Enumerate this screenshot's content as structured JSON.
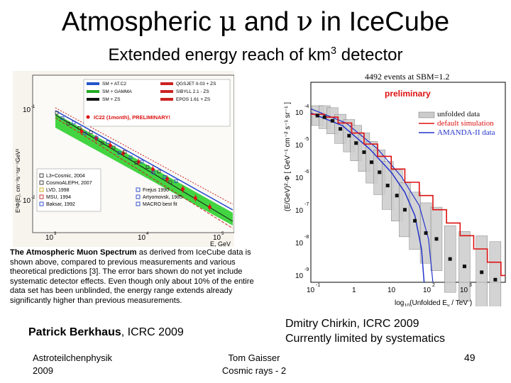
{
  "slide": {
    "title_pre": "Atmospheric ",
    "title_mu": "μ",
    "title_and": " and ",
    "title_nu": "ν",
    "title_post": " in IceCube",
    "subtitle_pre": "Extended energy reach of km",
    "subtitle_sup": "3",
    "subtitle_post": " detector",
    "caption_bold": "The Atmospheric Muon Spectrum",
    "caption_rest": " as derived from IceCube data is shown above, compared to previous measurements and various theoretical predictions [3]. The error bars shown do not yet include systematic detector effects. Even though only about 10% of the entire data set has been unblinded, the energy range extends already significantly higher than previous measurements.",
    "credit_left_bold": "Patrick Berkhaus",
    "credit_left_rest": ", ICRC 2009",
    "credit_right_line1": "Dmitry Chirkin, ICRC 2009",
    "credit_right_line2": "Currently limited by systematics",
    "footer_left_line1": "Astroteilchenphysik",
    "footer_left_line2": "2009",
    "footer_mid_line1": "Tom Gaisser",
    "footer_mid_line2": "Cosmic rays - 2",
    "page_number": "49"
  },
  "left_plot": {
    "ylabel": "E³Φ(E), cm⁻²s⁻¹sr⁻¹GeV²",
    "xlabel": "E, GeV",
    "x_ticks": [
      "10",
      "10",
      "10"
    ],
    "x_tick_exps": [
      "3",
      "4",
      "5"
    ],
    "y_ticks": [
      "10",
      "10"
    ],
    "y_tick_exps": [
      "-1",
      "-2"
    ],
    "legend_top": [
      {
        "label": "SM + AT.C2",
        "color": "#2255cc"
      },
      {
        "label": "SM + GAMMA",
        "color": "#22aa22"
      },
      {
        "label": "SM + ZS",
        "color": "#111111"
      },
      {
        "label": "QGSJET II-03 + ZS",
        "color": "#cc2222"
      },
      {
        "label": "SIBYLL 2.1 - ZS",
        "color": "#cc2222"
      },
      {
        "label": "EPOS 1.61 + ZS",
        "color": "#cc2222"
      }
    ],
    "ic22_label": "IC22 (1month), PRELIMINARY!",
    "legend_bottom": [
      "L3+Cosmic, 2004",
      "CosmoALEPH, 2007",
      "LVD, 1998",
      "MSU, 1994",
      "Baksar, 1992"
    ],
    "legend_bottom2": [
      "Frejus 1990",
      "Artyomovsk, 1985",
      "MACRO best fit"
    ],
    "colors": {
      "band": "#22cc22",
      "ic22": "#dd1111",
      "model_blue": "#2244cc"
    }
  },
  "right_plot": {
    "header": "4492 events at SBM=1.2",
    "preliminary": "preliminary",
    "ylabel": "(E/GeV)²·Φ [ GeV⁻¹ cm⁻² s⁻¹ sr⁻¹ ]",
    "xlabel_pre": "log",
    "xlabel_sub": "10",
    "xlabel_mid": "(Unfolded E",
    "xlabel_sub2": "ν",
    "xlabel_post": " / TeV )",
    "legend": [
      {
        "label": "unfolded data",
        "color": "#111111"
      },
      {
        "label": "default simulation",
        "color": "#dd1111"
      },
      {
        "label": "AMANDA-II data",
        "color": "#2233cc"
      }
    ],
    "y_tick_exps": [
      "-4",
      "-5",
      "-6",
      "-7",
      "-8",
      "-9"
    ],
    "x_ticks": [
      "10",
      "1",
      "10",
      "10",
      "10"
    ],
    "x_tick_exps": [
      "-1",
      "",
      "",
      "2",
      "3"
    ]
  },
  "chart_data": [
    {
      "type": "scatter",
      "title": "",
      "xlabel": "E, GeV",
      "ylabel": "E³Φ(E), cm⁻²s⁻¹sr⁻¹GeV²",
      "xscale": "log",
      "yscale": "log",
      "xlim": [
        1000,
        300000
      ],
      "ylim": [
        0.002,
        0.3
      ],
      "series": [
        {
          "name": "IC22 (1month), PRELIMINARY!",
          "x": [
            4000,
            6000,
            9000,
            13000,
            20000,
            30000,
            45000,
            70000,
            100000,
            150000
          ],
          "y": [
            0.05,
            0.04,
            0.032,
            0.025,
            0.019,
            0.015,
            0.011,
            0.008,
            0.006,
            0.0045
          ]
        }
      ]
    },
    {
      "type": "line",
      "title": "4492 events at SBM=1.2",
      "xlabel": "log10(Unfolded Eν / TeV)",
      "ylabel": "(E/GeV)²·Φ [ GeV⁻¹ cm⁻² s⁻¹ sr⁻¹ ]",
      "xscale": "log",
      "yscale": "log",
      "xlim": [
        0.1,
        2000
      ],
      "ylim": [
        1e-09,
        0.001
      ],
      "series": [
        {
          "name": "unfolded data",
          "x": [
            0.14,
            0.2,
            0.3,
            0.45,
            0.7,
            1.0,
            1.5,
            2.2,
            3.3,
            5,
            8,
            12,
            20,
            35,
            60,
            120,
            250,
            600,
            1200
          ],
          "y": [
            0.0001,
            9e-05,
            7e-05,
            4e-05,
            2.5e-05,
            1.5e-05,
            8e-06,
            4e-06,
            2e-06,
            8e-07,
            4e-07,
            1.5e-07,
            7e-08,
            3e-08,
            2e-08,
            5e-09,
            3e-09,
            2e-09,
            1.2e-09
          ]
        },
        {
          "name": "default simulation",
          "x": [
            0.1,
            0.2,
            0.4,
            0.8,
            1.5,
            3,
            6,
            12,
            25,
            50,
            100,
            200,
            400,
            800,
            1600
          ],
          "y": [
            0.00011,
            9e-05,
            6e-05,
            3e-05,
            1.4e-05,
            6e-06,
            2.5e-06,
            1e-06,
            4e-07,
            1.5e-07,
            6e-08,
            2.5e-08,
            1e-08,
            4e-09,
            1.6e-09
          ]
        }
      ]
    }
  ]
}
